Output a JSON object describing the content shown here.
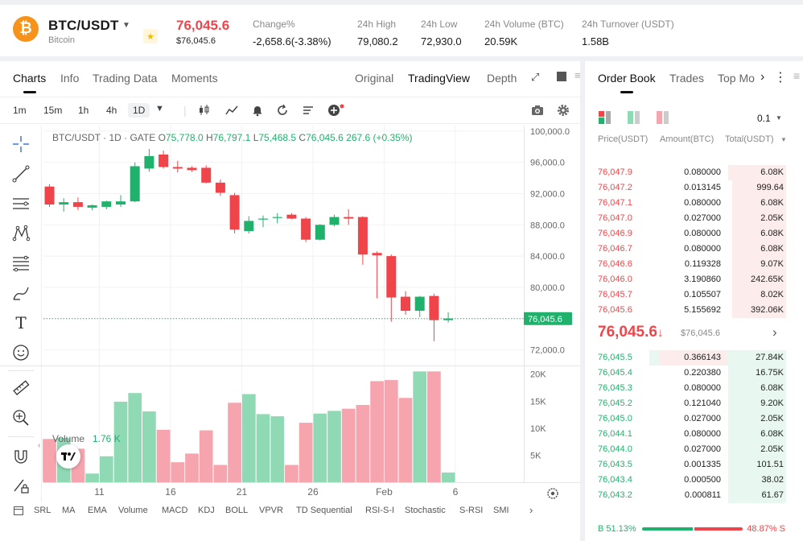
{
  "header": {
    "logo_glyph": "₿",
    "pair": "BTC/USDT",
    "pair_name": "Bitcoin",
    "last_price": "76,045.6",
    "last_price_sub": "$76,045.6",
    "stats": {
      "change_label": "Change%",
      "change_value": "-2,658.6(-3.38%)",
      "high_label": "24h High",
      "high_value": "79,080.2",
      "low_label": "24h Low",
      "low_value": "72,930.0",
      "vol_label": "24h Volume (BTC)",
      "vol_value": "20.59K",
      "turnover_label": "24h Turnover (USDT)",
      "turnover_value": "1.58B"
    }
  },
  "chart_tabs": {
    "charts": "Charts",
    "info": "Info",
    "trading_data": "Trading Data",
    "moments": "Moments",
    "original": "Original",
    "tradingview": "TradingView",
    "depth": "Depth"
  },
  "intervals": [
    "1m",
    "15m",
    "1h",
    "4h",
    "1D"
  ],
  "chart_data": {
    "type": "candlestick",
    "title": "BTC/USDT · 1D · GATE",
    "ohlc_label": {
      "o": "75,778.0",
      "h": "76,797.1",
      "l": "75,468.5",
      "c": "76,045.6",
      "change": "267.6 (+0.35%)",
      "o_prefix": "O",
      "h_prefix": "H",
      "l_prefix": "L",
      "c_prefix": "C"
    },
    "current_price_tag": "76,045.6",
    "y_ticks": [
      "100,000.0",
      "96,000.0",
      "92,000.0",
      "88,000.0",
      "84,000.0",
      "80,000.0",
      "72,000.0"
    ],
    "y_tick_values": [
      100000,
      96000,
      92000,
      88000,
      84000,
      80000,
      72000
    ],
    "ylim": [
      70000,
      100700
    ],
    "x_ticks": [
      "11",
      "16",
      "21",
      "26",
      "Feb",
      "6"
    ],
    "x_tick_index": [
      3.5,
      8.5,
      13.5,
      18.5,
      23.5,
      28.5
    ],
    "candles": [
      {
        "o": 92900,
        "h": 93200,
        "l": 90300,
        "c": 90600
      },
      {
        "o": 90600,
        "h": 91400,
        "l": 89700,
        "c": 90900
      },
      {
        "o": 90900,
        "h": 91500,
        "l": 89900,
        "c": 90300
      },
      {
        "o": 90200,
        "h": 90600,
        "l": 89900,
        "c": 90500
      },
      {
        "o": 90300,
        "h": 91100,
        "l": 90000,
        "c": 91000
      },
      {
        "o": 90600,
        "h": 91800,
        "l": 90300,
        "c": 91000
      },
      {
        "o": 91000,
        "h": 96000,
        "l": 90900,
        "c": 95500
      },
      {
        "o": 95200,
        "h": 97700,
        "l": 94800,
        "c": 96800
      },
      {
        "o": 97000,
        "h": 97500,
        "l": 95200,
        "c": 95400
      },
      {
        "o": 95400,
        "h": 96200,
        "l": 94700,
        "c": 95200
      },
      {
        "o": 95300,
        "h": 95500,
        "l": 94800,
        "c": 95000
      },
      {
        "o": 95300,
        "h": 95600,
        "l": 93300,
        "c": 93400
      },
      {
        "o": 93400,
        "h": 93800,
        "l": 91700,
        "c": 92100
      },
      {
        "o": 91800,
        "h": 92100,
        "l": 86900,
        "c": 87400
      },
      {
        "o": 87200,
        "h": 89100,
        "l": 86900,
        "c": 88500
      },
      {
        "o": 88700,
        "h": 89200,
        "l": 87700,
        "c": 88800
      },
      {
        "o": 88900,
        "h": 89500,
        "l": 88200,
        "c": 89000
      },
      {
        "o": 89300,
        "h": 89500,
        "l": 88700,
        "c": 88800
      },
      {
        "o": 88800,
        "h": 89000,
        "l": 85800,
        "c": 86100
      },
      {
        "o": 86100,
        "h": 88100,
        "l": 86000,
        "c": 88000
      },
      {
        "o": 88000,
        "h": 89300,
        "l": 87800,
        "c": 89000
      },
      {
        "o": 89000,
        "h": 90000,
        "l": 88000,
        "c": 88800
      },
      {
        "o": 89000,
        "h": 89100,
        "l": 82900,
        "c": 84200
      },
      {
        "o": 84400,
        "h": 84600,
        "l": 78600,
        "c": 84100
      },
      {
        "o": 84000,
        "h": 84200,
        "l": 75600,
        "c": 78700
      },
      {
        "o": 78800,
        "h": 79500,
        "l": 76500,
        "c": 77000
      },
      {
        "o": 77000,
        "h": 78900,
        "l": 76200,
        "c": 78800
      },
      {
        "o": 78900,
        "h": 79200,
        "l": 73100,
        "c": 75800
      },
      {
        "o": 75800,
        "h": 76800,
        "l": 75500,
        "c": 76000
      }
    ],
    "volume_label": "Volume",
    "volume_value": "1.76 K",
    "volume_ticks": [
      "20K",
      "15K",
      "10K",
      "5K"
    ],
    "volume_tick_values": [
      20000,
      15000,
      10000,
      5000
    ],
    "volume_max": 21000,
    "volume": [
      8000,
      8200,
      6200,
      1600,
      4800,
      14900,
      16500,
      13100,
      9700,
      3700,
      5300,
      9600,
      3200,
      14700,
      16300,
      12600,
      12200,
      3200,
      11000,
      12700,
      13200,
      13600,
      14300,
      18700,
      18900,
      15600,
      20500,
      20500,
      1800
    ]
  },
  "indicator_bar": [
    "SRL",
    "MA",
    "EMA",
    "Volume",
    "MACD",
    "KDJ",
    "BOLL",
    "VPVR",
    "TD Sequential",
    "RSI-S-I",
    "Stochastic",
    "S-RSI",
    "SMI"
  ],
  "order_book": {
    "tabs": {
      "order_book": "Order Book",
      "trades": "Trades",
      "top_movers": "Top Mo"
    },
    "precision": "0.1",
    "col_price": "Price(USDT)",
    "col_amount": "Amount(BTC)",
    "col_total": "Total(USDT)",
    "asks": [
      {
        "price": "76,047.9",
        "amount": "0.080000",
        "total": "6.08K",
        "depth": 0.29
      },
      {
        "price": "76,047.2",
        "amount": "0.013145",
        "total": "999.64",
        "depth": 0.27
      },
      {
        "price": "76,047.1",
        "amount": "0.080000",
        "total": "6.08K",
        "depth": 0.27
      },
      {
        "price": "76,047.0",
        "amount": "0.027000",
        "total": "2.05K",
        "depth": 0.27
      },
      {
        "price": "76,046.9",
        "amount": "0.080000",
        "total": "6.08K",
        "depth": 0.27
      },
      {
        "price": "76,046.7",
        "amount": "0.080000",
        "total": "6.08K",
        "depth": 0.27
      },
      {
        "price": "76,046.6",
        "amount": "0.119328",
        "total": "9.07K",
        "depth": 0.27
      },
      {
        "price": "76,046.0",
        "amount": "3.190860",
        "total": "242.65K",
        "depth": 0.27
      },
      {
        "price": "76,045.7",
        "amount": "0.105507",
        "total": "8.02K",
        "depth": 0.27
      },
      {
        "price": "76,045.6",
        "amount": "5.155692",
        "total": "392.06K",
        "depth": 0.27
      }
    ],
    "mid_price": "76,045.6",
    "mid_arrow": "↓",
    "mid_sub": "$76,045.6",
    "bids": [
      {
        "price": "76,045.5",
        "amount": "0.366143",
        "total": "27.84K",
        "depth": 0.68
      },
      {
        "price": "76,045.4",
        "amount": "0.220380",
        "total": "16.75K",
        "depth": 0.29
      },
      {
        "price": "76,045.3",
        "amount": "0.080000",
        "total": "6.08K",
        "depth": 0.29
      },
      {
        "price": "76,045.2",
        "amount": "0.121040",
        "total": "9.20K",
        "depth": 0.29
      },
      {
        "price": "76,045.0",
        "amount": "0.027000",
        "total": "2.05K",
        "depth": 0.29
      },
      {
        "price": "76,044.1",
        "amount": "0.080000",
        "total": "6.08K",
        "depth": 0.29
      },
      {
        "price": "76,044.0",
        "amount": "0.027000",
        "total": "2.05K",
        "depth": 0.29
      },
      {
        "price": "76,043.5",
        "amount": "0.001335",
        "total": "101.51",
        "depth": 0.29
      },
      {
        "price": "76,043.4",
        "amount": "0.000500",
        "total": "38.02",
        "depth": 0.29
      },
      {
        "price": "76,043.2",
        "amount": "0.000811",
        "total": "61.67",
        "depth": 0.29
      }
    ],
    "buy_label": "B 51.13%",
    "sell_label": "48.87% S",
    "buy_ratio": 0.5113
  },
  "colors": {
    "up": "#20b26c",
    "down": "#ef454a",
    "up_vol": "#8fd9b5",
    "down_vol": "#f6a4ae"
  }
}
